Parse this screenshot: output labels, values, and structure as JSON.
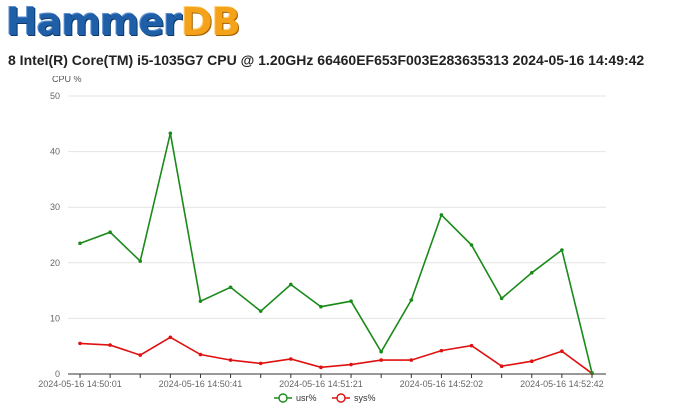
{
  "logo": {
    "part1": "Hammer",
    "part2": "DB"
  },
  "subtitle": "8 Intel(R) Core(TM) i5-1035G7 CPU @ 1.20GHz 66460EF653F003E283635313 2024-05-16 14:49:42",
  "chart_data": {
    "type": "line",
    "ylabel": "CPU %",
    "ylim": [
      0,
      50
    ],
    "yticks": [
      0,
      10,
      20,
      30,
      40,
      50
    ],
    "grid": "horizontal",
    "legend_position": "bottom",
    "x": [
      "14:50:01",
      "14:50:11",
      "14:50:21",
      "14:50:31",
      "14:50:41",
      "14:50:51",
      "14:51:01",
      "14:51:11",
      "14:51:21",
      "14:51:31",
      "14:51:41",
      "14:51:51",
      "14:52:02",
      "14:52:12",
      "14:52:22",
      "14:52:32",
      "14:52:42",
      "14:52:52"
    ],
    "xtick_labels": [
      {
        "index": 0,
        "label": "2024-05-16 14:50:01"
      },
      {
        "index": 4,
        "label": "2024-05-16 14:50:41"
      },
      {
        "index": 8,
        "label": "2024-05-16 14:51:21"
      },
      {
        "index": 12,
        "label": "2024-05-16 14:52:02"
      },
      {
        "index": 16,
        "label": "2024-05-16 14:52:42"
      }
    ],
    "series": [
      {
        "name": "usr%",
        "color": "#1a8a1a",
        "values": [
          23.5,
          25.5,
          20.3,
          43.3,
          13.1,
          15.6,
          11.3,
          16.1,
          12.1,
          13.1,
          4.0,
          13.3,
          28.6,
          23.2,
          13.6,
          18.2,
          22.3,
          0.2
        ]
      },
      {
        "name": "sys%",
        "color": "#e01010",
        "values": [
          5.5,
          5.2,
          3.4,
          6.6,
          3.5,
          2.5,
          1.9,
          2.7,
          1.2,
          1.7,
          2.5,
          2.5,
          4.2,
          5.1,
          1.4,
          2.3,
          4.1,
          0.1
        ]
      }
    ]
  }
}
